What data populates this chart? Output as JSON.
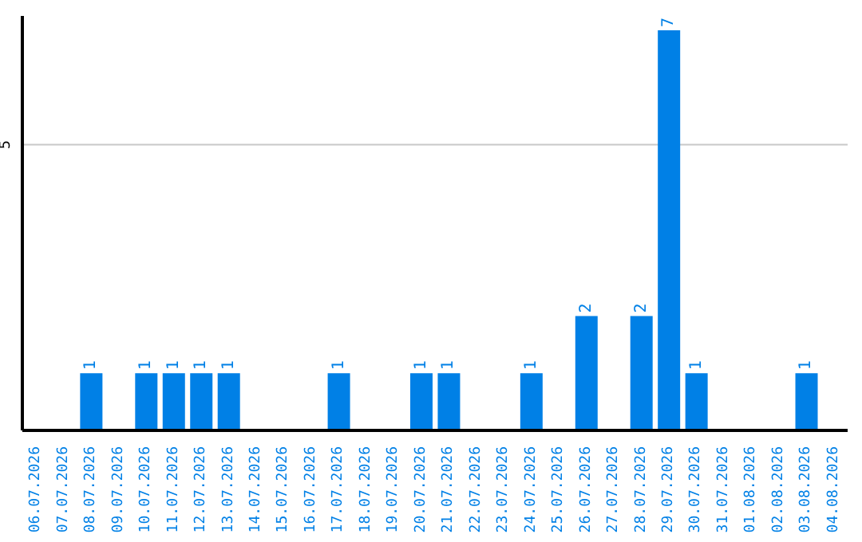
{
  "chart_data": {
    "type": "bar",
    "categories": [
      "06.07.2026",
      "07.07.2026",
      "08.07.2026",
      "09.07.2026",
      "10.07.2026",
      "11.07.2026",
      "12.07.2026",
      "13.07.2026",
      "14.07.2026",
      "15.07.2026",
      "16.07.2026",
      "17.07.2026",
      "18.07.2026",
      "19.07.2026",
      "20.07.2026",
      "21.07.2026",
      "22.07.2026",
      "23.07.2026",
      "24.07.2026",
      "25.07.2026",
      "26.07.2026",
      "27.07.2026",
      "28.07.2026",
      "29.07.2026",
      "30.07.2026",
      "31.07.2026",
      "01.08.2026",
      "02.08.2026",
      "03.08.2026",
      "04.08.2026"
    ],
    "values": [
      0,
      0,
      1,
      0,
      1,
      1,
      1,
      1,
      0,
      0,
      0,
      1,
      0,
      0,
      1,
      1,
      0,
      0,
      1,
      0,
      2,
      0,
      2,
      7,
      1,
      0,
      0,
      0,
      1,
      0
    ],
    "value_labels": [
      null,
      null,
      "1",
      null,
      "1",
      "1",
      "1",
      "1",
      null,
      null,
      null,
      "1",
      null,
      null,
      "1",
      "1",
      null,
      null,
      "1",
      null,
      "2",
      null,
      "2",
      "7",
      "1",
      null,
      null,
      null,
      "1",
      null
    ],
    "color": "#0080e6",
    "ylim": [
      0,
      7.25
    ],
    "yticks": [
      5
    ],
    "grid": "y"
  }
}
